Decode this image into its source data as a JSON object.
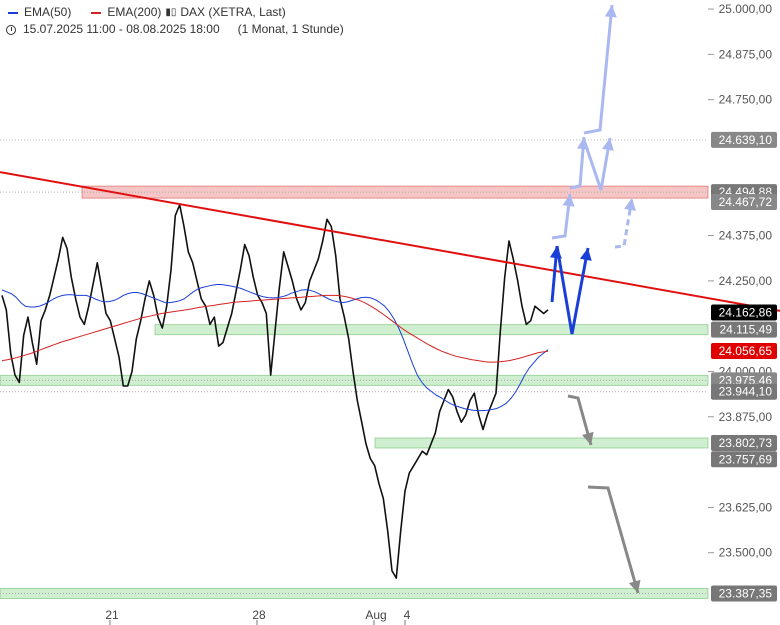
{
  "legend": {
    "ema50_label": "EMA(50)",
    "ema200_label": "EMA(200)",
    "instrument_label": "DAX (XETRA, Last)",
    "range_label": "15.07.2025 11:00 - 08.08.2025 18:00",
    "interval_label": "(1 Monat, 1 Stunde)",
    "ema50_color": "#1a3fd6",
    "ema200_color": "#d42222"
  },
  "chart_data": {
    "type": "line",
    "title": "",
    "xlabel": "",
    "ylabel": "",
    "ylim": [
      23375,
      25025
    ],
    "x_ticks": [
      "21",
      "28",
      "Aug",
      "4"
    ],
    "y_ticks": [
      "25.000,00",
      "24.875,00",
      "24.750,00",
      "24.375,00",
      "24.250,00",
      "24.000,00",
      "23.875,00",
      "23.625,00",
      "23.500,00"
    ],
    "price_series": {
      "name": "DAX (XETRA, Last)",
      "color": "#111111",
      "values": [
        24210,
        24170,
        24050,
        23990,
        23970,
        24100,
        24150,
        24080,
        24020,
        24140,
        24170,
        24210,
        24260,
        24310,
        24370,
        24340,
        24260,
        24200,
        24150,
        24130,
        24180,
        24240,
        24300,
        24230,
        24160,
        24140,
        24090,
        24040,
        23960,
        23960,
        24000,
        24090,
        24140,
        24200,
        24250,
        24210,
        24150,
        24120,
        24180,
        24280,
        24430,
        24460,
        24400,
        24330,
        24300,
        24250,
        24200,
        24180,
        24130,
        24150,
        24070,
        24080,
        24120,
        24160,
        24220,
        24280,
        24350,
        24320,
        24260,
        24210,
        24190,
        24160,
        23990,
        24110,
        24230,
        24330,
        24290,
        24250,
        24200,
        24170,
        24190,
        24250,
        24280,
        24310,
        24360,
        24420,
        24400,
        24320,
        24200,
        24150,
        24090,
        24000,
        23920,
        23860,
        23800,
        23760,
        23740,
        23690,
        23650,
        23560,
        23450,
        23430,
        23560,
        23670,
        23720,
        23740,
        23760,
        23780,
        23770,
        23800,
        23830,
        23890,
        23920,
        23950,
        23930,
        23890,
        23860,
        23880,
        23920,
        23940,
        23880,
        23840,
        23880,
        23910,
        23940,
        24110,
        24260,
        24360,
        24310,
        24250,
        24180,
        24130,
        24140,
        24180,
        24170,
        24160,
        24170
      ]
    },
    "series": [
      {
        "name": "EMA(50)",
        "color": "#1a3fd6",
        "values": [
          24225,
          24220,
          24215,
          24205,
          24190,
          24180,
          24178,
          24178,
          24180,
          24185,
          24192,
          24200,
          24206,
          24210,
          24212,
          24212,
          24210,
          24210,
          24210,
          24206,
          24200,
          24195,
          24192,
          24193,
          24196,
          24202,
          24210,
          24215,
          24218,
          24218,
          24215,
          24210,
          24205,
          24200,
          24195,
          24190,
          24190,
          24192,
          24195,
          24200,
          24210,
          24220,
          24228,
          24232,
          24235,
          24238,
          24240,
          24240,
          24238,
          24236,
          24233,
          24230,
          24225,
          24220,
          24215,
          24210,
          24206,
          24204,
          24203,
          24204,
          24206,
          24210,
          24216,
          24220,
          24224,
          24226,
          24224,
          24220,
          24214,
          24207,
          24200,
          24195,
          24192,
          24190,
          24192,
          24196,
          24200,
          24204,
          24205,
          24203,
          24198,
          24190,
          24180,
          24165,
          24145,
          24120,
          24090,
          24055,
          24020,
          23990,
          23970,
          23955,
          23945,
          23935,
          23928,
          23920,
          23912,
          23906,
          23902,
          23898,
          23895,
          23893,
          23892,
          23892,
          23893,
          23895,
          23898,
          23904,
          23912,
          23925,
          23942,
          23965,
          23990,
          24010,
          24025,
          24040,
          24050,
          24060
        ]
      },
      {
        "name": "EMA(200)",
        "color": "#d42222",
        "values": [
          24030,
          24032,
          24035,
          24038,
          24042,
          24046,
          24050,
          24055,
          24060,
          24065,
          24070,
          24075,
          24080,
          24084,
          24088,
          24092,
          24096,
          24100,
          24104,
          24108,
          24112,
          24116,
          24120,
          24124,
          24128,
          24132,
          24136,
          24140,
          24144,
          24148,
          24151,
          24154,
          24157,
          24160,
          24162,
          24164,
          24166,
          24168,
          24170,
          24172,
          24175,
          24177,
          24179,
          24181,
          24183,
          24185,
          24187,
          24189,
          24191,
          24192,
          24193,
          24194,
          24195,
          24196,
          24197,
          24198,
          24199,
          24200,
          24201,
          24202,
          24203,
          24204,
          24205,
          24206,
          24207,
          24208,
          24209,
          24210,
          24210,
          24210,
          24209,
          24207,
          24204,
          24200,
          24196,
          24190,
          24183,
          24175,
          24166,
          24157,
          24147,
          24137,
          24127,
          24117,
          24108,
          24100,
          24092,
          24084,
          24076,
          24069,
          24062,
          24056,
          24051,
          24046,
          24042,
          24039,
          24036,
          24033,
          24031,
          24029,
          24027,
          24026,
          24026,
          24027,
          24028,
          24030,
          24033,
          24036,
          24040,
          24044,
          24048,
          24052,
          24054,
          24056
        ]
      }
    ],
    "horizontal_levels": [
      {
        "value": 24639.1,
        "label": "24.639,10",
        "color": "#999999",
        "style": "dotted",
        "label_bg": "#888888"
      },
      {
        "value": 24494.88,
        "label": "24.494,88",
        "color": "#d9534f",
        "style": "zone-red",
        "label_bg": "#777777"
      },
      {
        "value": 24467.72,
        "label": "24.467,72",
        "color": "#999999",
        "style": "none",
        "label_bg": "#888888"
      },
      {
        "value": 24162.86,
        "label": "24.162,86",
        "color": "#000000",
        "style": "none",
        "label_bg": "#000000"
      },
      {
        "value": 24115.49,
        "label": "24.115,49",
        "color": "#4caf50",
        "style": "zone-green",
        "label_bg": "#777777"
      },
      {
        "value": 24056.65,
        "label": "24.056,65",
        "color": "#d42222",
        "style": "none",
        "label_bg": "#e00000"
      },
      {
        "value": 23975.46,
        "label": "23.975,46",
        "color": "#4caf50",
        "style": "zone-green",
        "label_bg": "#888888"
      },
      {
        "value": 23944.1,
        "label": "23.944,10",
        "color": "#4caf50",
        "style": "none",
        "label_bg": "#777777"
      },
      {
        "value": 23802.73,
        "label": "23.802,73",
        "color": "#4caf50",
        "style": "zone-green",
        "label_bg": "#777777"
      },
      {
        "value": 23757.69,
        "label": "23.757,69",
        "color": "#4caf50",
        "style": "none",
        "label_bg": "#777777"
      },
      {
        "value": 23387.35,
        "label": "23.387,35",
        "color": "#4caf50",
        "style": "zone-green",
        "label_bg": "#777777"
      }
    ],
    "trendline": {
      "name": "downtrend",
      "color": "#e01010",
      "y_start": 24550,
      "y_end": 24250
    },
    "projection_arrows": [
      {
        "color": "#1a3fd6",
        "style": "solid"
      },
      {
        "color": "#aab8f0",
        "style": "solid"
      },
      {
        "color": "#aab8f0",
        "style": "dashed"
      },
      {
        "color": "#888888",
        "style": "solid"
      }
    ],
    "grid": false,
    "legend_position": "top-left"
  }
}
